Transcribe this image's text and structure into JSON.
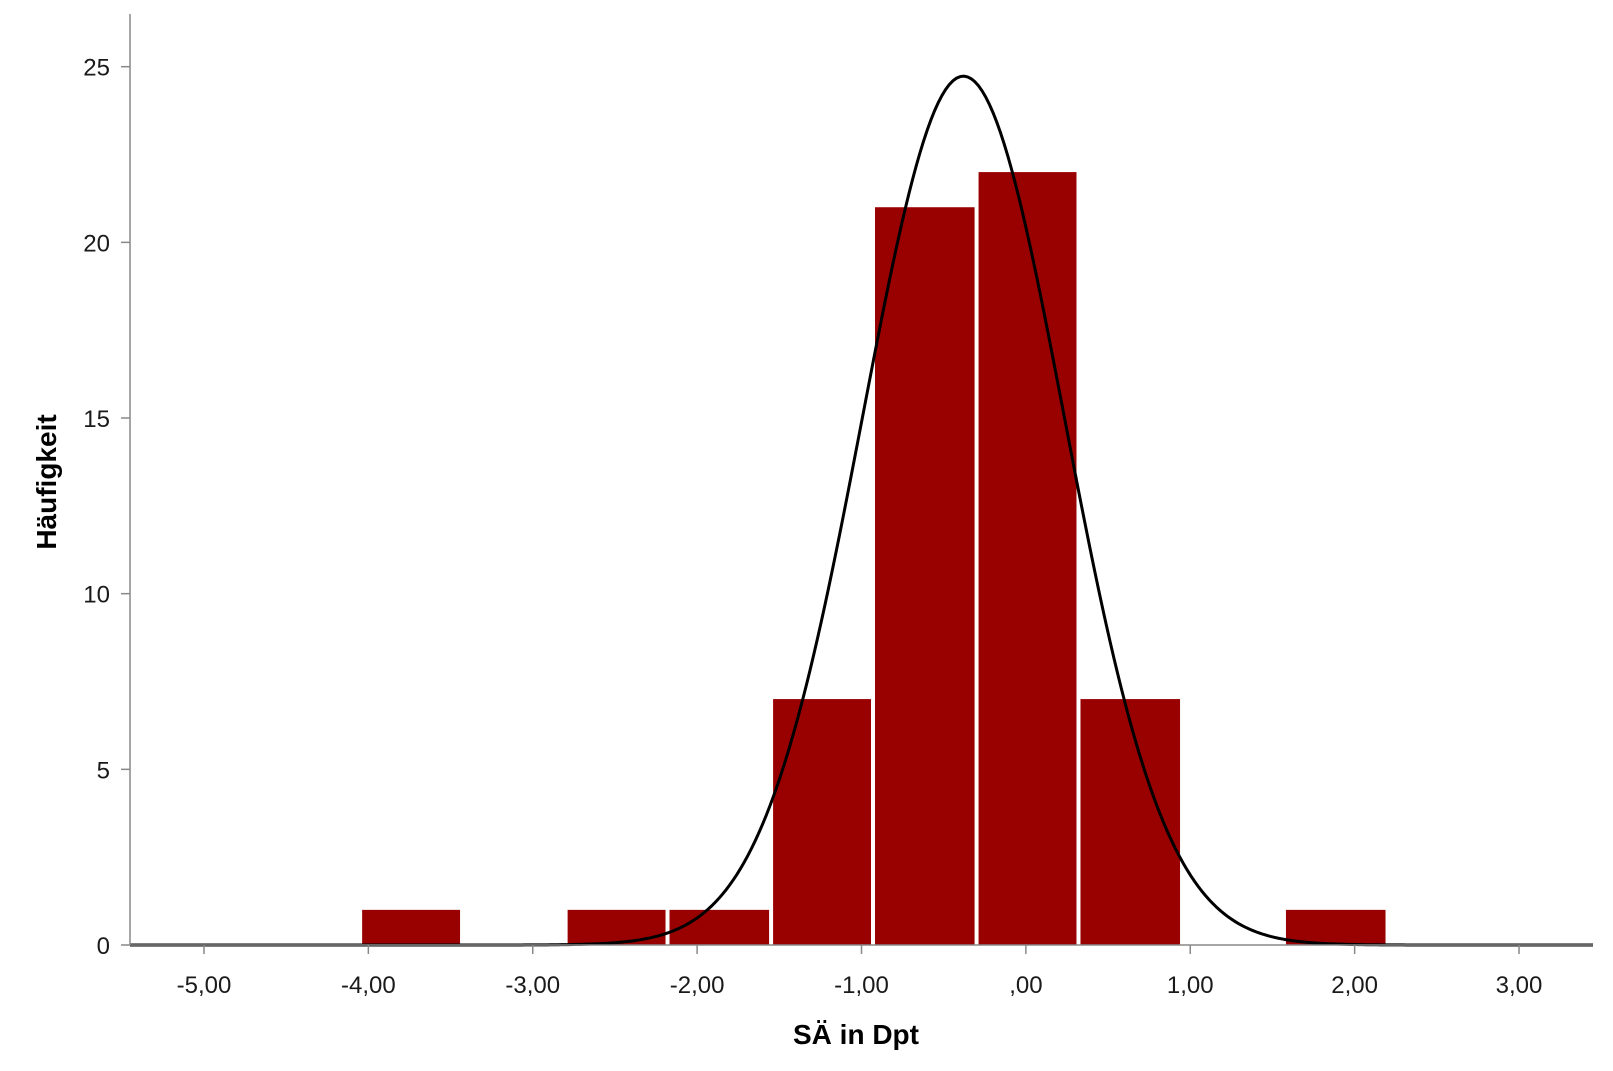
{
  "chart_data": {
    "type": "bar",
    "xlabel": "SÄ in Dpt",
    "ylabel": "Häufigkeit",
    "xlim": [
      -5.45,
      3.45
    ],
    "ylim": [
      0,
      26.5
    ],
    "x_ticks": [
      {
        "value": -5,
        "label": "-5,00"
      },
      {
        "value": -4,
        "label": "-4,00"
      },
      {
        "value": -3,
        "label": "-3,00"
      },
      {
        "value": -2,
        "label": "-2,00"
      },
      {
        "value": -1,
        "label": "-1,00"
      },
      {
        "value": 0,
        "label": ",00"
      },
      {
        "value": 1,
        "label": "1,00"
      },
      {
        "value": 2,
        "label": "2,00"
      },
      {
        "value": 3,
        "label": "3,00"
      }
    ],
    "y_ticks": [
      {
        "value": 0,
        "label": "0"
      },
      {
        "value": 5,
        "label": "5"
      },
      {
        "value": 10,
        "label": "10"
      },
      {
        "value": 15,
        "label": "15"
      },
      {
        "value": 20,
        "label": "20"
      },
      {
        "value": 25,
        "label": "25"
      }
    ],
    "bins": [
      {
        "x0": -4.05,
        "x1": -3.43,
        "count": 1
      },
      {
        "x0": -3.43,
        "x1": -2.8,
        "count": 0
      },
      {
        "x0": -2.8,
        "x1": -2.18,
        "count": 1
      },
      {
        "x0": -2.18,
        "x1": -1.55,
        "count": 1
      },
      {
        "x0": -1.55,
        "x1": -0.93,
        "count": 7
      },
      {
        "x0": -0.93,
        "x1": -0.3,
        "count": 21
      },
      {
        "x0": -0.3,
        "x1": 0.32,
        "count": 22
      },
      {
        "x0": 0.32,
        "x1": 0.95,
        "count": 7
      },
      {
        "x0": 0.95,
        "x1": 1.57,
        "count": 0
      },
      {
        "x0": 1.57,
        "x1": 2.2,
        "count": 1
      }
    ],
    "normal_curve": {
      "mean": -0.38,
      "sd": 0.615,
      "n": 61,
      "bin_width": 0.625
    },
    "bar_color": "#990000",
    "curve_color": "#000000",
    "grid": false,
    "legend": "none"
  }
}
